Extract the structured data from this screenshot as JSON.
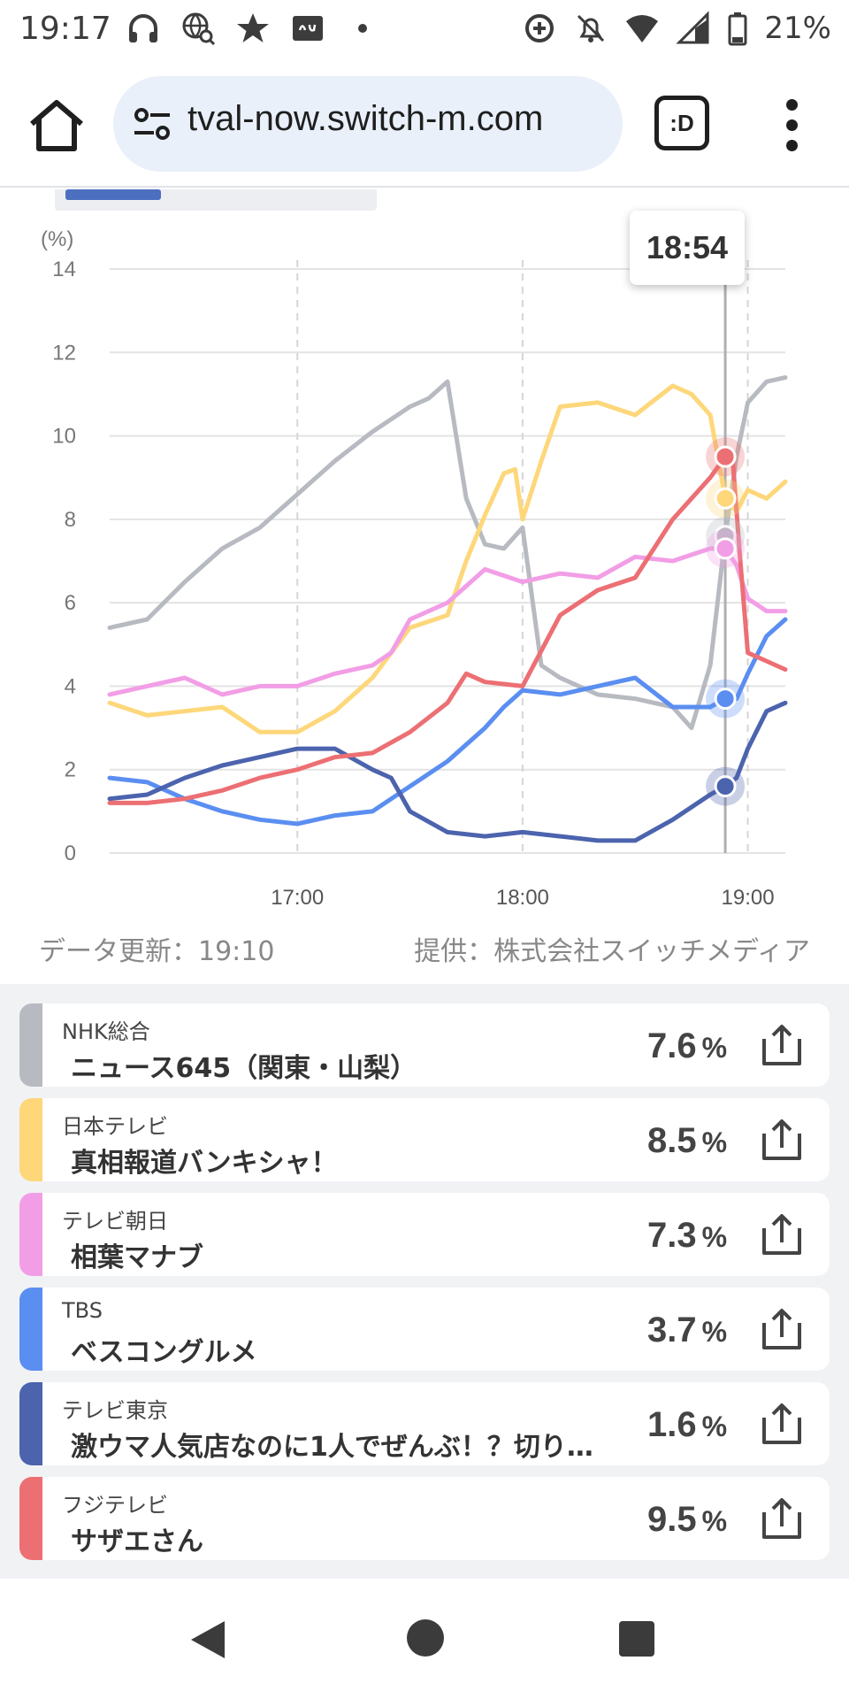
{
  "status_bar": {
    "time": "19:17",
    "battery": "21%",
    "icons": [
      "headphones-icon",
      "globe-search-icon",
      "star-icon",
      "au-app-icon",
      "dot-icon",
      "data-saver-icon",
      "silent-icon",
      "wifi-icon",
      "signal-icon",
      "battery-icon"
    ]
  },
  "browser": {
    "url": "tval-now.switch-m.com",
    "tab_label": ":D"
  },
  "chart_data": {
    "type": "line",
    "y_unit": "(%)",
    "ylim": [
      0,
      14
    ],
    "y_ticks": [
      "0",
      "2",
      "4",
      "6",
      "8",
      "10",
      "12",
      "14"
    ],
    "x_ticks": [
      "17:00",
      "18:00",
      "19:00"
    ],
    "x_range": [
      "16:10",
      "19:10"
    ],
    "cursor_time": "18:54",
    "series": [
      {
        "color": "#b7bac0",
        "x": [
          "16:10",
          "16:20",
          "16:30",
          "16:40",
          "16:50",
          "17:00",
          "17:10",
          "17:20",
          "17:30",
          "17:35",
          "17:40",
          "17:45",
          "17:50",
          "17:55",
          "18:00",
          "18:05",
          "18:10",
          "18:20",
          "18:30",
          "18:40",
          "18:45",
          "18:50",
          "18:54",
          "18:57",
          "19:00",
          "19:05",
          "19:10"
        ],
        "values": [
          5.4,
          5.6,
          6.5,
          7.3,
          7.8,
          8.6,
          9.4,
          10.1,
          10.7,
          10.9,
          11.3,
          8.5,
          7.4,
          7.3,
          7.8,
          4.5,
          4.2,
          3.8,
          3.7,
          3.5,
          3.0,
          4.5,
          7.6,
          9.5,
          10.8,
          11.3,
          11.4
        ]
      },
      {
        "color": "#fdd77a",
        "x": [
          "16:10",
          "16:20",
          "16:30",
          "16:40",
          "16:50",
          "17:00",
          "17:10",
          "17:20",
          "17:30",
          "17:40",
          "17:45",
          "17:50",
          "17:55",
          "17:58",
          "18:00",
          "18:05",
          "18:10",
          "18:20",
          "18:30",
          "18:40",
          "18:45",
          "18:50",
          "18:54",
          "18:57",
          "19:00",
          "19:05",
          "19:10"
        ],
        "values": [
          3.6,
          3.3,
          3.4,
          3.5,
          2.9,
          2.9,
          3.4,
          4.2,
          5.4,
          5.7,
          7.0,
          8.1,
          9.1,
          9.2,
          8.0,
          9.4,
          10.7,
          10.8,
          10.5,
          11.2,
          11.0,
          10.5,
          8.5,
          8.2,
          8.7,
          8.5,
          8.9
        ]
      },
      {
        "color": "#f29ee6",
        "x": [
          "16:10",
          "16:20",
          "16:30",
          "16:40",
          "16:50",
          "17:00",
          "17:10",
          "17:20",
          "17:25",
          "17:30",
          "17:40",
          "17:50",
          "18:00",
          "18:10",
          "18:20",
          "18:30",
          "18:40",
          "18:50",
          "18:54",
          "18:57",
          "19:00",
          "19:05",
          "19:10"
        ],
        "values": [
          3.8,
          4.0,
          4.2,
          3.8,
          4.0,
          4.0,
          4.3,
          4.5,
          4.8,
          5.6,
          6.0,
          6.8,
          6.5,
          6.7,
          6.6,
          7.1,
          7.0,
          7.3,
          7.3,
          6.9,
          6.1,
          5.8,
          5.8
        ]
      },
      {
        "color": "#5b8ef1",
        "x": [
          "16:10",
          "16:20",
          "16:30",
          "16:40",
          "16:50",
          "17:00",
          "17:10",
          "17:20",
          "17:30",
          "17:40",
          "17:50",
          "17:55",
          "18:00",
          "18:10",
          "18:20",
          "18:30",
          "18:40",
          "18:50",
          "18:54",
          "18:57",
          "19:00",
          "19:05",
          "19:10"
        ],
        "values": [
          1.8,
          1.7,
          1.3,
          1.0,
          0.8,
          0.7,
          0.9,
          1.0,
          1.6,
          2.2,
          3.0,
          3.5,
          3.9,
          3.8,
          4.0,
          4.2,
          3.5,
          3.5,
          3.7,
          3.7,
          4.3,
          5.2,
          5.6
        ]
      },
      {
        "color": "#4c63ad",
        "x": [
          "16:10",
          "16:20",
          "16:30",
          "16:40",
          "16:50",
          "17:00",
          "17:10",
          "17:20",
          "17:25",
          "17:30",
          "17:40",
          "17:50",
          "18:00",
          "18:10",
          "18:20",
          "18:30",
          "18:40",
          "18:50",
          "18:54",
          "18:57",
          "19:00",
          "19:05",
          "19:10"
        ],
        "values": [
          1.3,
          1.4,
          1.8,
          2.1,
          2.3,
          2.5,
          2.5,
          2.0,
          1.8,
          1.0,
          0.5,
          0.4,
          0.5,
          0.4,
          0.3,
          0.3,
          0.8,
          1.4,
          1.6,
          1.8,
          2.5,
          3.4,
          3.6
        ]
      },
      {
        "color": "#ec6f73",
        "x": [
          "16:10",
          "16:20",
          "16:30",
          "16:40",
          "16:50",
          "17:00",
          "17:10",
          "17:20",
          "17:30",
          "17:40",
          "17:45",
          "17:50",
          "18:00",
          "18:10",
          "18:20",
          "18:30",
          "18:40",
          "18:50",
          "18:54",
          "18:56",
          "18:58",
          "19:00",
          "19:05",
          "19:10"
        ],
        "values": [
          1.2,
          1.2,
          1.3,
          1.5,
          1.8,
          2.0,
          2.3,
          2.4,
          2.9,
          3.6,
          4.3,
          4.1,
          4.0,
          5.7,
          6.3,
          6.6,
          8.0,
          9.0,
          9.5,
          9.4,
          7.0,
          4.8,
          4.6,
          4.4
        ]
      }
    ]
  },
  "chart_footer": {
    "updated": "データ更新：19:10",
    "provider": "提供：株式会社スイッチメディア"
  },
  "channels": [
    {
      "name": "NHK総合",
      "program": "ニュース645（関東・山梨）",
      "value": "7.6",
      "unit": "%",
      "color": "#b7bac0"
    },
    {
      "name": "日本テレビ",
      "program": "真相報道バンキシャ！",
      "value": "8.5",
      "unit": "%",
      "color": "#fdd77a"
    },
    {
      "name": "テレビ朝日",
      "program": "相葉マナブ",
      "value": "7.3",
      "unit": "%",
      "color": "#f29ee6"
    },
    {
      "name": "TBS",
      "program": "ベスコングルメ",
      "value": "3.7",
      "unit": "%",
      "color": "#5b8ef1"
    },
    {
      "name": "テレビ東京",
      "program": "激ウマ人気店なのに1人でぜんぶ！？切り…",
      "value": "1.6",
      "unit": "%",
      "color": "#4c63ad"
    },
    {
      "name": "フジテレビ",
      "program": "サザエさん",
      "value": "9.5",
      "unit": "%",
      "color": "#ec6f73"
    }
  ]
}
